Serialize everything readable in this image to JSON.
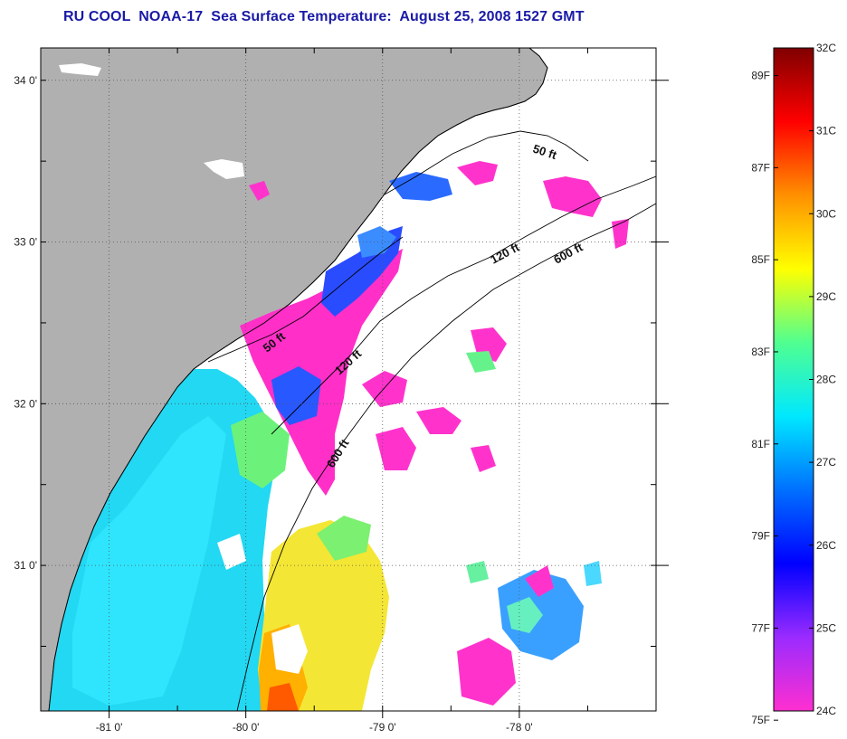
{
  "title": "RU COOL  NOAA-17  Sea Surface Temperature:  August 25, 2008 1527 GMT",
  "map": {
    "lon_range": [
      -81.5,
      -77.0
    ],
    "lat_range": [
      30.1,
      34.2
    ],
    "lon_ticks": [
      {
        "value": -81,
        "label": "-81 0'"
      },
      {
        "value": -80,
        "label": "-80 0'"
      },
      {
        "value": -79,
        "label": "-79 0'"
      },
      {
        "value": -78,
        "label": "-78 0'"
      }
    ],
    "lat_ticks": [
      {
        "value": 34,
        "label": "34 0'"
      },
      {
        "value": 33,
        "label": "33 0'"
      },
      {
        "value": 32,
        "label": "32 0'"
      },
      {
        "value": 31,
        "label": "31 0'"
      }
    ],
    "isobath_labels": [
      {
        "text": "50 ft",
        "depth": "50"
      },
      {
        "text": "120 ft",
        "depth": "120"
      },
      {
        "text": "600 ft",
        "depth": "600"
      },
      {
        "text": "50 ft",
        "depth": "50"
      },
      {
        "text": "120 ft",
        "depth": "120"
      },
      {
        "text": "600 ft",
        "depth": "600"
      }
    ],
    "colors": {
      "land": "#b0b0b0",
      "ocean_cloud": "#ffffff",
      "grid": "#555555"
    }
  },
  "colorbar": {
    "celsius": [
      "32C",
      "31C",
      "30C",
      "29C",
      "28C",
      "27C",
      "26C",
      "25C",
      "24C"
    ],
    "fahrenheit": [
      "89F",
      "87F",
      "85F",
      "83F",
      "81F",
      "79F",
      "77F",
      "75F"
    ],
    "range_c": [
      24,
      32
    ],
    "stops": [
      "#ff2fd0",
      "#9a2bff",
      "#0000ff",
      "#0070ff",
      "#00e8ff",
      "#50ff90",
      "#ffff00",
      "#ff9000",
      "#ff0000",
      "#800000"
    ]
  }
}
